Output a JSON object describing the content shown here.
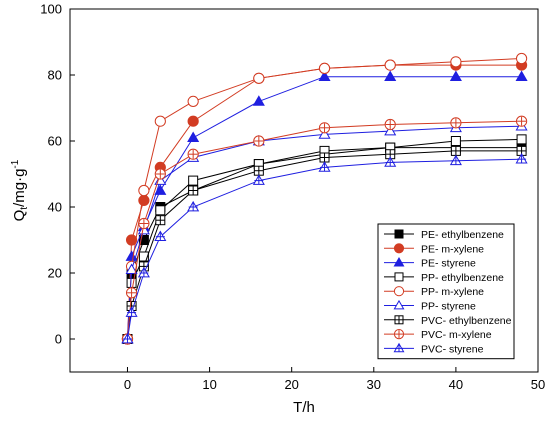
{
  "chart_data": {
    "type": "line",
    "title": "",
    "xlabel": "T/h",
    "ylabel_main": "Q",
    "ylabel_sub": "t",
    "ylabel_rest": "/mg·g",
    "ylabel_sup": "-1",
    "xlim": [
      -7,
      50
    ],
    "ylim": [
      -10,
      100
    ],
    "xticks": [
      0,
      10,
      20,
      30,
      40,
      50
    ],
    "yticks": [
      0,
      20,
      40,
      60,
      80,
      100
    ],
    "grid": false,
    "legend_position": "bottom-right",
    "x": [
      0,
      0.5,
      2,
      4,
      8,
      16,
      24,
      32,
      40,
      48
    ],
    "series": [
      {
        "name": "PE- ethylbenzene",
        "marker": "square",
        "fill": "filled",
        "color": "#000000",
        "values": [
          0,
          20,
          30,
          40,
          45,
          53,
          56,
          58,
          58,
          58
        ]
      },
      {
        "name": "PE- m-xylene",
        "marker": "circle",
        "fill": "filled",
        "color": "#d23c23",
        "values": [
          0,
          30,
          42,
          52,
          66,
          79,
          82,
          83,
          83,
          83
        ]
      },
      {
        "name": "PE- styrene",
        "marker": "triangle",
        "fill": "filled",
        "color": "#1f1fe0",
        "values": [
          0,
          25,
          34,
          45,
          61,
          72,
          79.5,
          79.5,
          79.5,
          79.5
        ]
      },
      {
        "name": "PP- ethylbenzene",
        "marker": "square",
        "fill": "open",
        "color": "#000000",
        "values": [
          0,
          17,
          25,
          39,
          48,
          53,
          57,
          58,
          60,
          60.5
        ]
      },
      {
        "name": "PP- m-xylene",
        "marker": "circle",
        "fill": "open",
        "color": "#d23c23",
        "values": [
          0,
          22,
          45,
          66,
          72,
          79,
          82,
          83,
          84,
          85
        ]
      },
      {
        "name": "PP- styrene",
        "marker": "triangle",
        "fill": "open",
        "color": "#1f1fe0",
        "values": [
          0,
          21,
          33,
          48,
          55,
          60,
          62,
          63,
          64,
          64.5
        ]
      },
      {
        "name": "PVC- ethylbenzene",
        "marker": "square-cross",
        "fill": "open",
        "color": "#000000",
        "values": [
          0,
          10,
          22,
          36,
          45,
          51,
          55,
          56,
          57,
          57
        ]
      },
      {
        "name": "PVC- m-xylene",
        "marker": "circle-cross",
        "fill": "open",
        "color": "#d23c23",
        "values": [
          0,
          14,
          35,
          50,
          56,
          60,
          64,
          65,
          65.5,
          66
        ]
      },
      {
        "name": "PVC- styrene",
        "marker": "triangle-cross",
        "fill": "open",
        "color": "#1f1fe0",
        "values": [
          0,
          8,
          20,
          31,
          40,
          48,
          52,
          53.5,
          54,
          54.5
        ]
      }
    ]
  }
}
